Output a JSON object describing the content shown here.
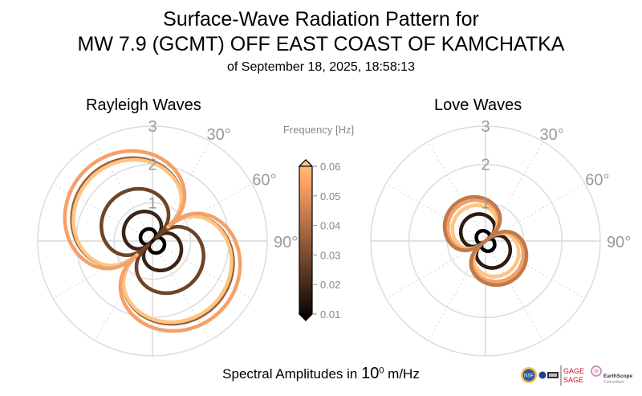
{
  "header": {
    "title_line1": "Surface-Wave Radiation Pattern for",
    "title_line2": "MW 7.9 (GCMT) OFF EAST COAST OF KAMCHATKA",
    "title_line3": "of September 18, 2025, 18:58:13"
  },
  "footer": {
    "prefix": "Spectral Amplitudes in ",
    "base": "10",
    "exponent": "0",
    "unit": " m/Hz"
  },
  "logos": {
    "nsf": "NSF",
    "gage": "GAGE",
    "sage": "SAGE",
    "earthscope": "EarthScope",
    "consortium": "Consortium"
  },
  "chart_data": [
    {
      "type": "polar-line",
      "title": "Rayleigh Waves",
      "radial_ticks": [
        "1",
        "2",
        "3"
      ],
      "radial_range": [
        0,
        3
      ],
      "angle_ticks": [
        "30°",
        "60°",
        "90°"
      ],
      "angle_direction": "clockwise-from-north",
      "grid": true,
      "series": [
        {
          "frequency": 0.01,
          "color": "#000000",
          "peak": 0.35,
          "orient_deg": 135,
          "node_fill": 0.05
        },
        {
          "frequency": 0.02,
          "color": "#3a2416",
          "peak": 0.85,
          "orient_deg": 137,
          "node_fill": 0.08
        },
        {
          "frequency": 0.03,
          "color": "#6e4428",
          "peak": 1.5,
          "orient_deg": 137,
          "node_fill": 0.1
        },
        {
          "frequency": 0.04,
          "color": "#9a5f38",
          "peak": 2.35,
          "orient_deg": 138,
          "node_fill": 0.22
        },
        {
          "frequency": 0.06,
          "color": "#ffc580",
          "peak": 2.3,
          "orient_deg": 138,
          "node_fill": 0.24
        },
        {
          "frequency": 0.05,
          "color": "#f5a068",
          "peak": 2.55,
          "orient_deg": 138,
          "node_fill": 0.24
        }
      ]
    },
    {
      "type": "polar-line",
      "title": "Love Waves",
      "radial_ticks": [
        "1",
        "2",
        "3"
      ],
      "radial_range": [
        0,
        3
      ],
      "angle_ticks": [
        "30°",
        "60°",
        "90°"
      ],
      "angle_direction": "clockwise-from-north",
      "grid": true,
      "series": [
        {
          "frequency": 0.01,
          "color": "#000000",
          "peak": 0.35,
          "orient_deg": 145,
          "node_fill": 0.02,
          "dimple": 0.35
        },
        {
          "frequency": 0.02,
          "color": "#2e1b10",
          "peak": 0.8,
          "orient_deg": 143,
          "node_fill": 0.02,
          "dimple": 0.1
        },
        {
          "frequency": 0.06,
          "color": "#ffc580",
          "peak": 1.05,
          "orient_deg": 142,
          "node_fill": 0.02,
          "dimple": 0.08
        },
        {
          "frequency": 0.05,
          "color": "#f5a068",
          "peak": 1.2,
          "orient_deg": 142,
          "node_fill": 0.02,
          "dimple": 0.08
        },
        {
          "frequency": 0.04,
          "color": "#c07a48",
          "peak": 1.3,
          "orient_deg": 142,
          "node_fill": 0.02,
          "dimple": 0.08
        }
      ]
    },
    {
      "type": "colorbar",
      "label": "Frequency [Hz]",
      "ticks": [
        "0.01",
        "0.02",
        "0.03",
        "0.04",
        "0.05",
        "0.06"
      ],
      "range": [
        0.01,
        0.06
      ],
      "extend": "both",
      "colormap": [
        "#000000",
        "#2a1a10",
        "#553521",
        "#805032",
        "#aa6b43",
        "#d58654",
        "#ffa264",
        "#ffc580"
      ]
    }
  ]
}
